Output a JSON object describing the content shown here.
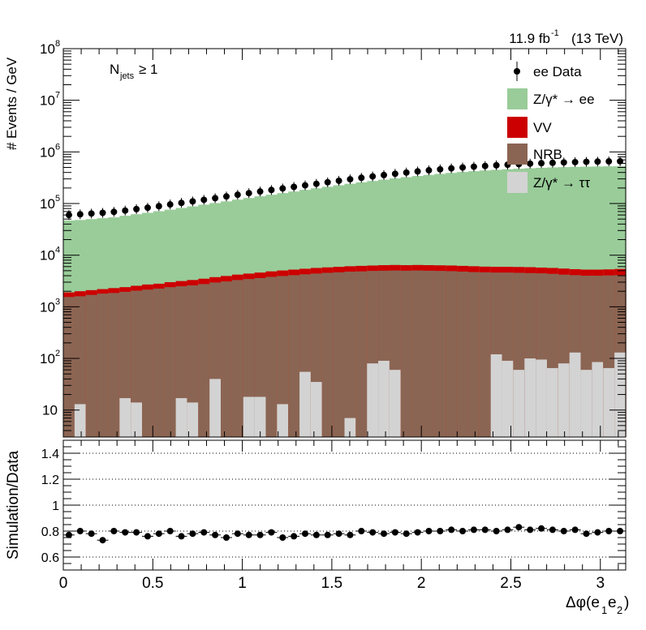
{
  "header": {
    "lumi_text": "11.9 fb",
    "lumi_sup": "-1",
    "energy_text": " (13 TeV)",
    "selection_n": "N",
    "selection_sub": "jets",
    "selection_rest": " ≥ 1"
  },
  "chart_data": [
    {
      "type": "bar",
      "stacked": true,
      "ylabel": "# Events / GeV",
      "ylog": true,
      "ylim": [
        3,
        100000000
      ],
      "xlim": [
        0,
        3.1416
      ],
      "yticks": [
        {
          "value": 10,
          "base": "10",
          "exp": ""
        },
        {
          "value": 100,
          "base": "10",
          "exp": "2"
        },
        {
          "value": 1000,
          "base": "10",
          "exp": "3"
        },
        {
          "value": 10000,
          "base": "10",
          "exp": "4"
        },
        {
          "value": 100000,
          "base": "10",
          "exp": "5"
        },
        {
          "value": 1000000,
          "base": "10",
          "exp": "6"
        },
        {
          "value": 10000000,
          "base": "10",
          "exp": "7"
        },
        {
          "value": 100000000,
          "base": "10",
          "exp": "8"
        }
      ],
      "legend_position": "top-right",
      "legend": [
        {
          "label": "ee Data",
          "kind": "marker",
          "color": "#000000"
        },
        {
          "label": "Z/γ* → ee",
          "kind": "fill",
          "color": "#99cc99"
        },
        {
          "label": "VV",
          "kind": "fill",
          "color": "#cc0000"
        },
        {
          "label": "NRB",
          "kind": "fill",
          "color": "#8b6553"
        },
        {
          "label": "Z/γ* → ττ",
          "kind": "fill",
          "color": "#d3d3d3"
        }
      ],
      "nbins": 50,
      "series": [
        {
          "name": "Z/γ* → ττ",
          "color": "#d3d3d3",
          "values": [
            0,
            13,
            0,
            0,
            0,
            17,
            14,
            0,
            0,
            0,
            17,
            14,
            0,
            40,
            0,
            0,
            18,
            18,
            0,
            13,
            0,
            55,
            35,
            0,
            0,
            7,
            0,
            13,
            0,
            0,
            0,
            0,
            0,
            0,
            0,
            0,
            0,
            0,
            0,
            0,
            0,
            0,
            0,
            0,
            0,
            0,
            5,
            0,
            0,
            0
          ]
        },
        {
          "name": "Z/γ* → ττ (upper bins)",
          "color": "#d3d3d3",
          "values": []
        },
        {
          "name": "NRB",
          "color": "#8b6553",
          "values": [
            1550,
            1600,
            1700,
            1800,
            1850,
            1950,
            2050,
            2150,
            2250,
            2400,
            2500,
            2600,
            2750,
            2950,
            3100,
            3300,
            3450,
            3600,
            3800,
            3950,
            4100,
            4250,
            4400,
            4550,
            4650,
            4800,
            4850,
            4950,
            5000,
            5050,
            5000,
            5050,
            5000,
            4950,
            4900,
            4800,
            4700,
            4650,
            4600,
            4600,
            4550,
            4500,
            4450,
            4350,
            4200,
            4100,
            4000,
            4000,
            4050,
            4100
          ]
        },
        {
          "name": "VV",
          "color": "#cc0000",
          "values": [
            1900,
            2000,
            2100,
            2200,
            2300,
            2400,
            2550,
            2700,
            2800,
            3000,
            3150,
            3300,
            3500,
            3750,
            3950,
            4200,
            4400,
            4600,
            4850,
            5050,
            5250,
            5450,
            5650,
            5800,
            5950,
            6100,
            6200,
            6300,
            6400,
            6450,
            6400,
            6450,
            6400,
            6350,
            6300,
            6200,
            6100,
            6000,
            5950,
            5950,
            5900,
            5850,
            5750,
            5650,
            5500,
            5350,
            5250,
            5250,
            5300,
            5400
          ]
        },
        {
          "name": "Z/γ* → ee",
          "color": "#99cc99",
          "values": [
            47000,
            48000,
            50000,
            52000,
            54000,
            58000,
            62000,
            66000,
            71000,
            76000,
            82000,
            88000,
            95000,
            102000,
            110000,
            119000,
            128000,
            138000,
            148000,
            159000,
            171000,
            184000,
            197000,
            211000,
            226000,
            241000,
            257000,
            273000,
            290000,
            307000,
            324000,
            341000,
            358000,
            375000,
            392000,
            408000,
            423000,
            437000,
            450000,
            462000,
            473000,
            483000,
            492000,
            500000,
            507000,
            513000,
            518000,
            522000,
            525000,
            527000
          ]
        }
      ],
      "tt_upper_values": [
        0,
        0,
        0,
        0,
        0,
        0,
        0,
        0,
        0,
        0,
        0,
        0,
        0,
        0,
        0,
        0,
        0,
        0,
        0,
        0,
        0,
        0,
        0,
        0,
        0,
        0,
        0,
        80,
        90,
        60,
        0,
        0,
        0,
        0,
        0,
        0,
        0,
        0,
        120,
        90,
        60,
        100,
        95,
        65,
        80,
        130,
        60,
        85,
        65,
        130
      ],
      "data_points": {
        "name": "ee Data",
        "values": [
          60000,
          62000,
          64000,
          66000,
          69000,
          73000,
          78000,
          83000,
          89000,
          96000,
          103000,
          110000,
          118000,
          127000,
          137000,
          148000,
          159000,
          171000,
          183000,
          196000,
          210000,
          225000,
          241000,
          258000,
          276000,
          295000,
          315000,
          335000,
          356000,
          377000,
          398000,
          419000,
          440000,
          460000,
          480000,
          499000,
          517000,
          534000,
          550000,
          565000,
          579000,
          592000,
          604000,
          615000,
          625000,
          634000,
          642000,
          649000,
          655000,
          660000
        ]
      }
    },
    {
      "type": "scatter",
      "ylabel": "Simulation/Data",
      "xlabel_base": "Δφ(e",
      "xlabel_sub1": "1",
      "xlabel_mid": "e",
      "xlabel_sub2": "2",
      "xlabel_end": ")",
      "ylim": [
        0.5,
        1.5
      ],
      "xlim": [
        0,
        3.1416
      ],
      "yticks": [
        "0.6",
        "0.8",
        "1",
        "1.2",
        "1.4"
      ],
      "xticks": [
        "0",
        "0.5",
        "1",
        "1.5",
        "2",
        "2.5",
        "3"
      ],
      "grid": true,
      "values": [
        0.77,
        0.8,
        0.78,
        0.73,
        0.8,
        0.79,
        0.79,
        0.76,
        0.78,
        0.8,
        0.76,
        0.78,
        0.79,
        0.77,
        0.75,
        0.78,
        0.77,
        0.77,
        0.79,
        0.75,
        0.76,
        0.78,
        0.77,
        0.77,
        0.78,
        0.77,
        0.8,
        0.79,
        0.78,
        0.79,
        0.78,
        0.79,
        0.8,
        0.8,
        0.81,
        0.8,
        0.81,
        0.81,
        0.8,
        0.81,
        0.83,
        0.81,
        0.82,
        0.81,
        0.8,
        0.81,
        0.78,
        0.79,
        0.8,
        0.8
      ]
    }
  ]
}
